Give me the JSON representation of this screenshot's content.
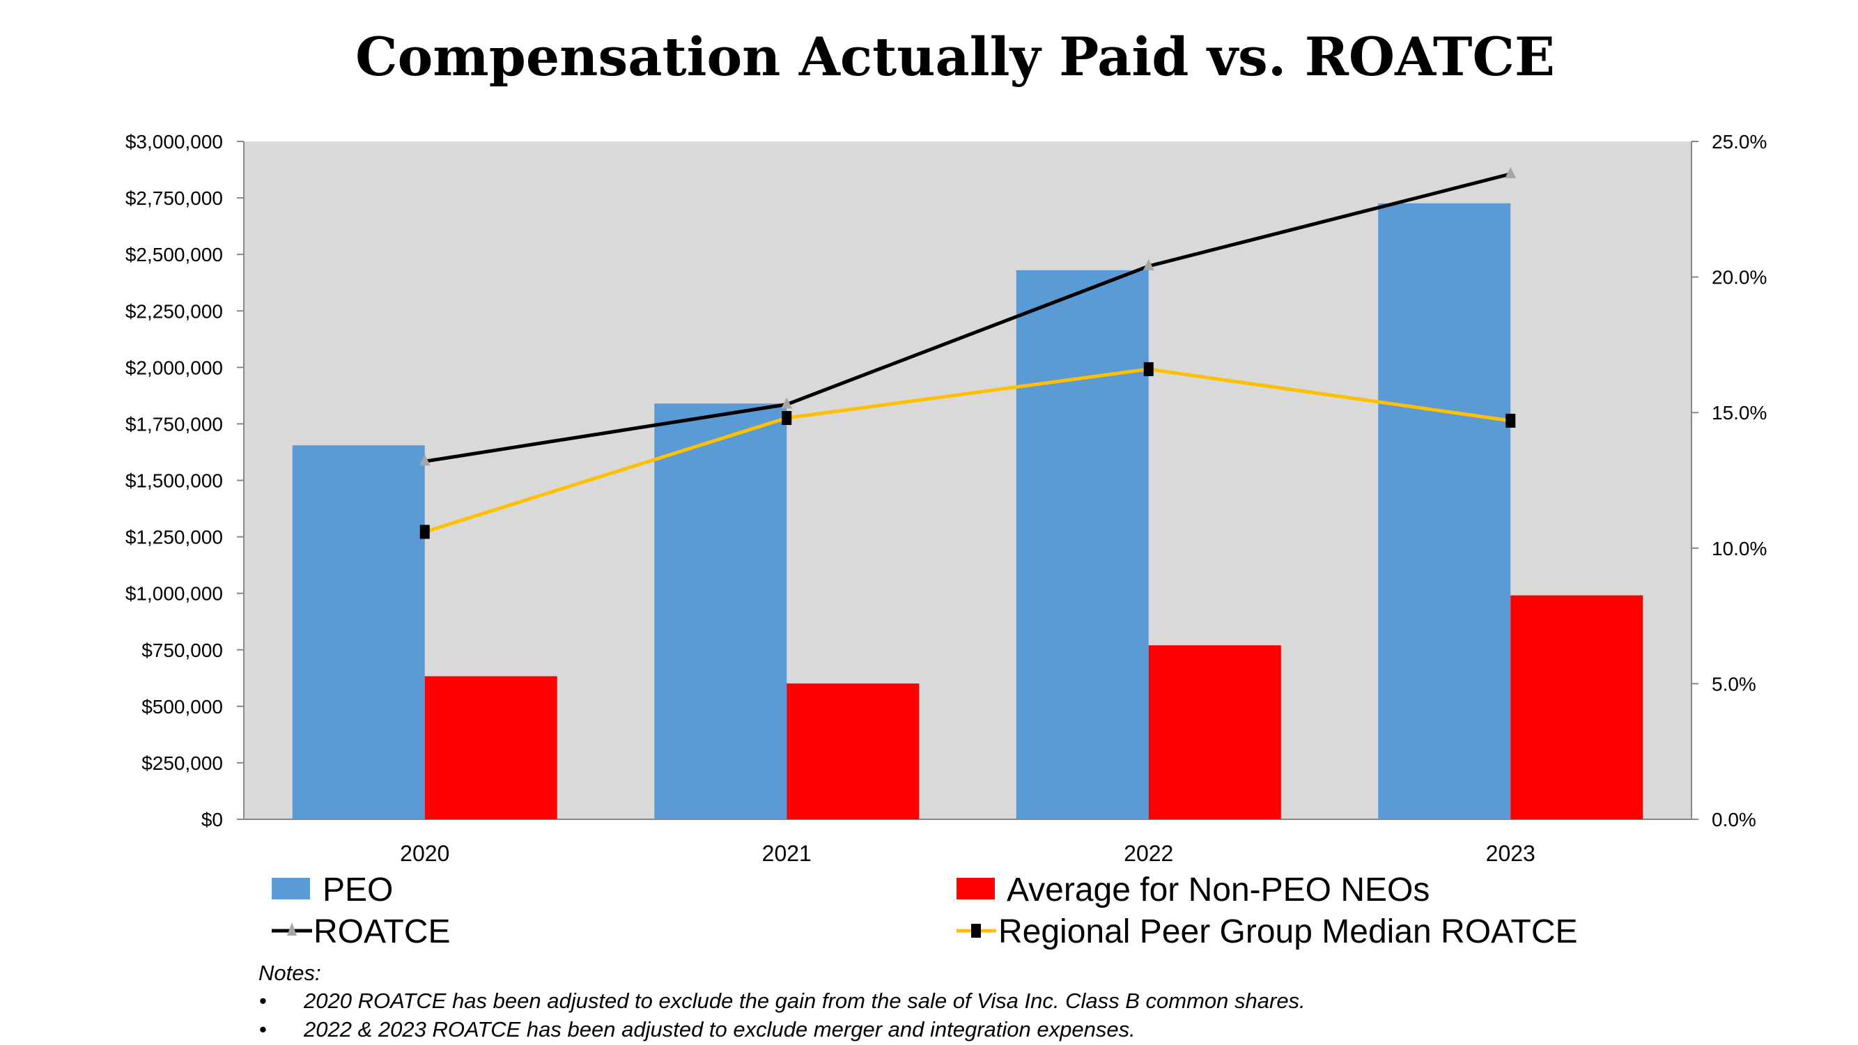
{
  "chart_data": {
    "type": "bar",
    "title": "Compensation Actually Paid vs. ROATCE",
    "categories": [
      "2020",
      "2021",
      "2022",
      "2023"
    ],
    "y_left": {
      "range": [
        0,
        3000000
      ],
      "ticks": [
        "$0",
        "$250,000",
        "$500,000",
        "$750,000",
        "$1,000,000",
        "$1,250,000",
        "$1,500,000",
        "$1,750,000",
        "$2,000,000",
        "$2,250,000",
        "$2,500,000",
        "$2,750,000",
        "$3,000,000"
      ]
    },
    "y_right": {
      "range": [
        0,
        25
      ],
      "ticks": [
        "0.0%",
        "5.0%",
        "10.0%",
        "15.0%",
        "20.0%",
        "25.0%"
      ]
    },
    "series": [
      {
        "name": "PEO",
        "type": "bar",
        "axis": "left",
        "color": "#5b9bd5",
        "values": [
          1655000,
          1840000,
          2430000,
          2726000
        ]
      },
      {
        "name": "Average for Non-PEO NEOs",
        "type": "bar",
        "axis": "left",
        "color": "#ff0000",
        "values": [
          633000,
          601000,
          770000,
          991000
        ]
      },
      {
        "name": "ROATCE",
        "type": "line",
        "axis": "right",
        "color": "#000000",
        "marker": "triangle",
        "marker_color": "#a6a6a6",
        "values": [
          13.2,
          15.3,
          20.4,
          23.8
        ]
      },
      {
        "name": "Regional Peer Group Median ROATCE",
        "type": "line",
        "axis": "right",
        "color": "#ffc000",
        "marker": "square",
        "marker_color": "#000000",
        "values": [
          10.6,
          14.8,
          16.6,
          14.7
        ]
      }
    ],
    "plot_background": "#d9d9d9",
    "grid": false,
    "legend_placement": "bottom"
  },
  "notes": {
    "heading": "Notes:",
    "items": [
      "2020 ROATCE has been adjusted to exclude the gain from the sale of Visa Inc. Class B common shares.",
      "2022 & 2023 ROATCE has been adjusted to exclude merger and integration expenses."
    ]
  }
}
